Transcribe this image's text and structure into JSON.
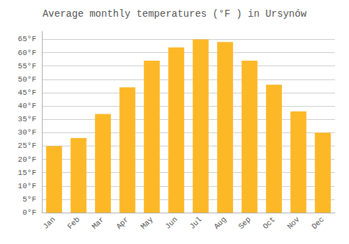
{
  "chart_data": {
    "type": "bar",
    "title": "Average monthly temperatures (°F ) in Ursynów",
    "categories": [
      "Jan",
      "Feb",
      "Mar",
      "Apr",
      "May",
      "Jun",
      "Jul",
      "Aug",
      "Sep",
      "Oct",
      "Nov",
      "Dec"
    ],
    "values": [
      25,
      28,
      37,
      47,
      57,
      62,
      65,
      64,
      57,
      48,
      38,
      30
    ],
    "color": "#FDB827",
    "ylim": [
      0,
      68
    ],
    "yticks": [
      {
        "value": 0,
        "label": "0°F"
      },
      {
        "value": 5,
        "label": "5°F"
      },
      {
        "value": 10,
        "label": "10°F"
      },
      {
        "value": 15,
        "label": "15°F"
      },
      {
        "value": 20,
        "label": "20°F"
      },
      {
        "value": 25,
        "label": "25°F"
      },
      {
        "value": 30,
        "label": "30°F"
      },
      {
        "value": 35,
        "label": "35°F"
      },
      {
        "value": 40,
        "label": "40°F"
      },
      {
        "value": 45,
        "label": "45°F"
      },
      {
        "value": 50,
        "label": "50°F"
      },
      {
        "value": 55,
        "label": "55°F"
      },
      {
        "value": 60,
        "label": "60°F"
      },
      {
        "value": 65,
        "label": "65°F"
      }
    ],
    "grid": true
  }
}
